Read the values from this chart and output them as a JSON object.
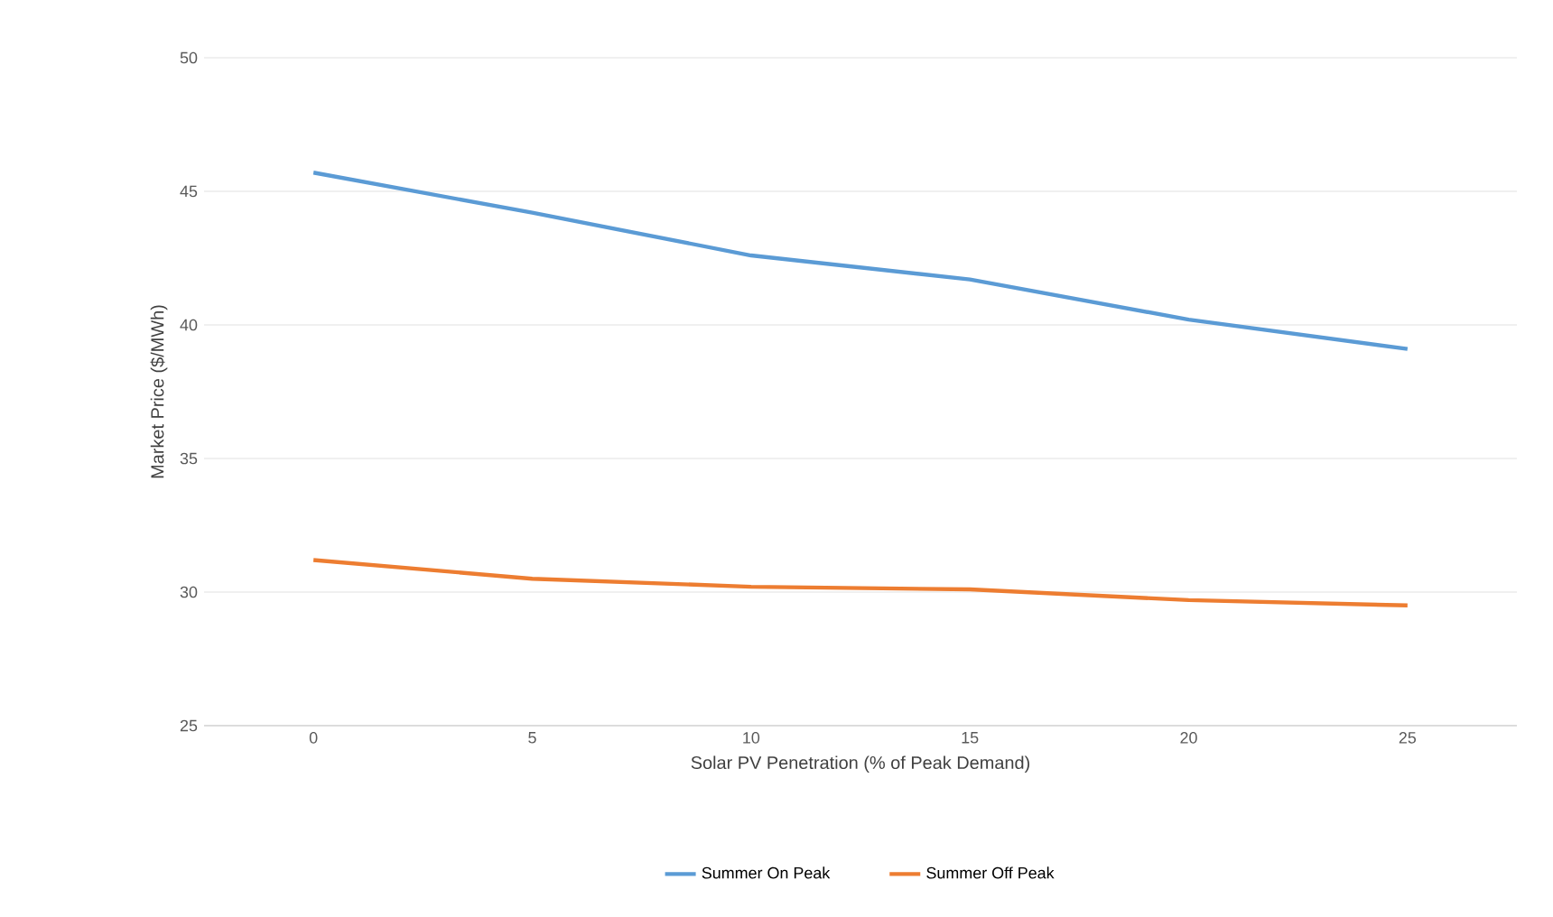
{
  "chart_data": {
    "type": "line",
    "xlabel": "Solar PV Penetration (% of Peak Demand)",
    "ylabel": "Market Price ($/MWh)",
    "categories": [
      "0",
      "5",
      "10",
      "15",
      "20",
      "25"
    ],
    "series": [
      {
        "name": "Summer On Peak",
        "color": "#5b9bd5",
        "values": [
          45.7,
          44.2,
          42.6,
          41.7,
          40.2,
          39.1
        ]
      },
      {
        "name": "Summer Off Peak",
        "color": "#ed7d31",
        "values": [
          31.2,
          30.5,
          30.2,
          30.1,
          29.7,
          29.5
        ]
      }
    ],
    "ylim": [
      25,
      50
    ],
    "yticks": [
      25,
      30,
      35,
      40,
      45,
      50
    ],
    "grid": "y",
    "legend": "bottom",
    "marker": "none",
    "line_style": "solid"
  }
}
